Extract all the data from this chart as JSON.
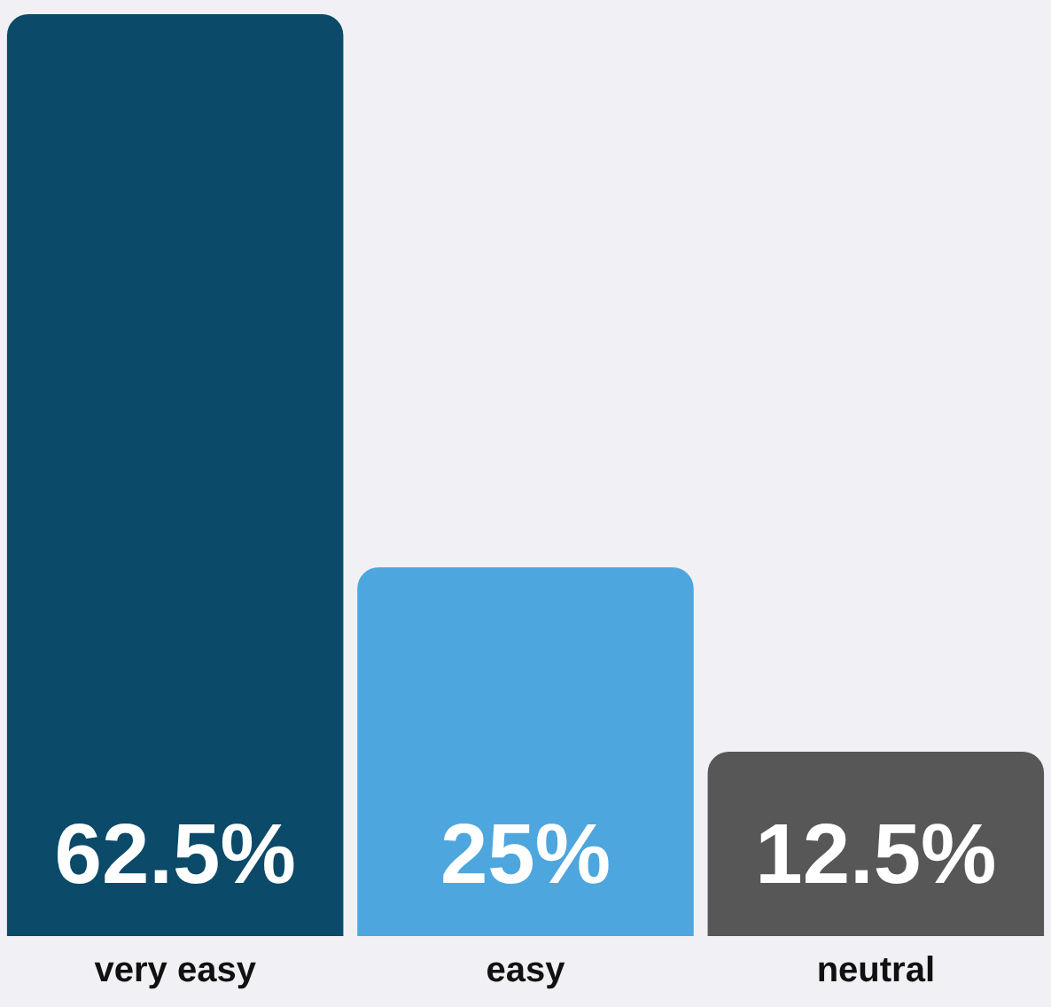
{
  "chart_data": {
    "type": "bar",
    "categories": [
      "very easy",
      "easy",
      "neutral"
    ],
    "values": [
      62.5,
      25,
      12.5
    ],
    "colors": [
      "#0b4a68",
      "#4ea6de",
      "#575757"
    ],
    "value_labels": [
      "62.5%",
      "25%",
      "12.5%"
    ],
    "grid": false,
    "legend": false
  }
}
